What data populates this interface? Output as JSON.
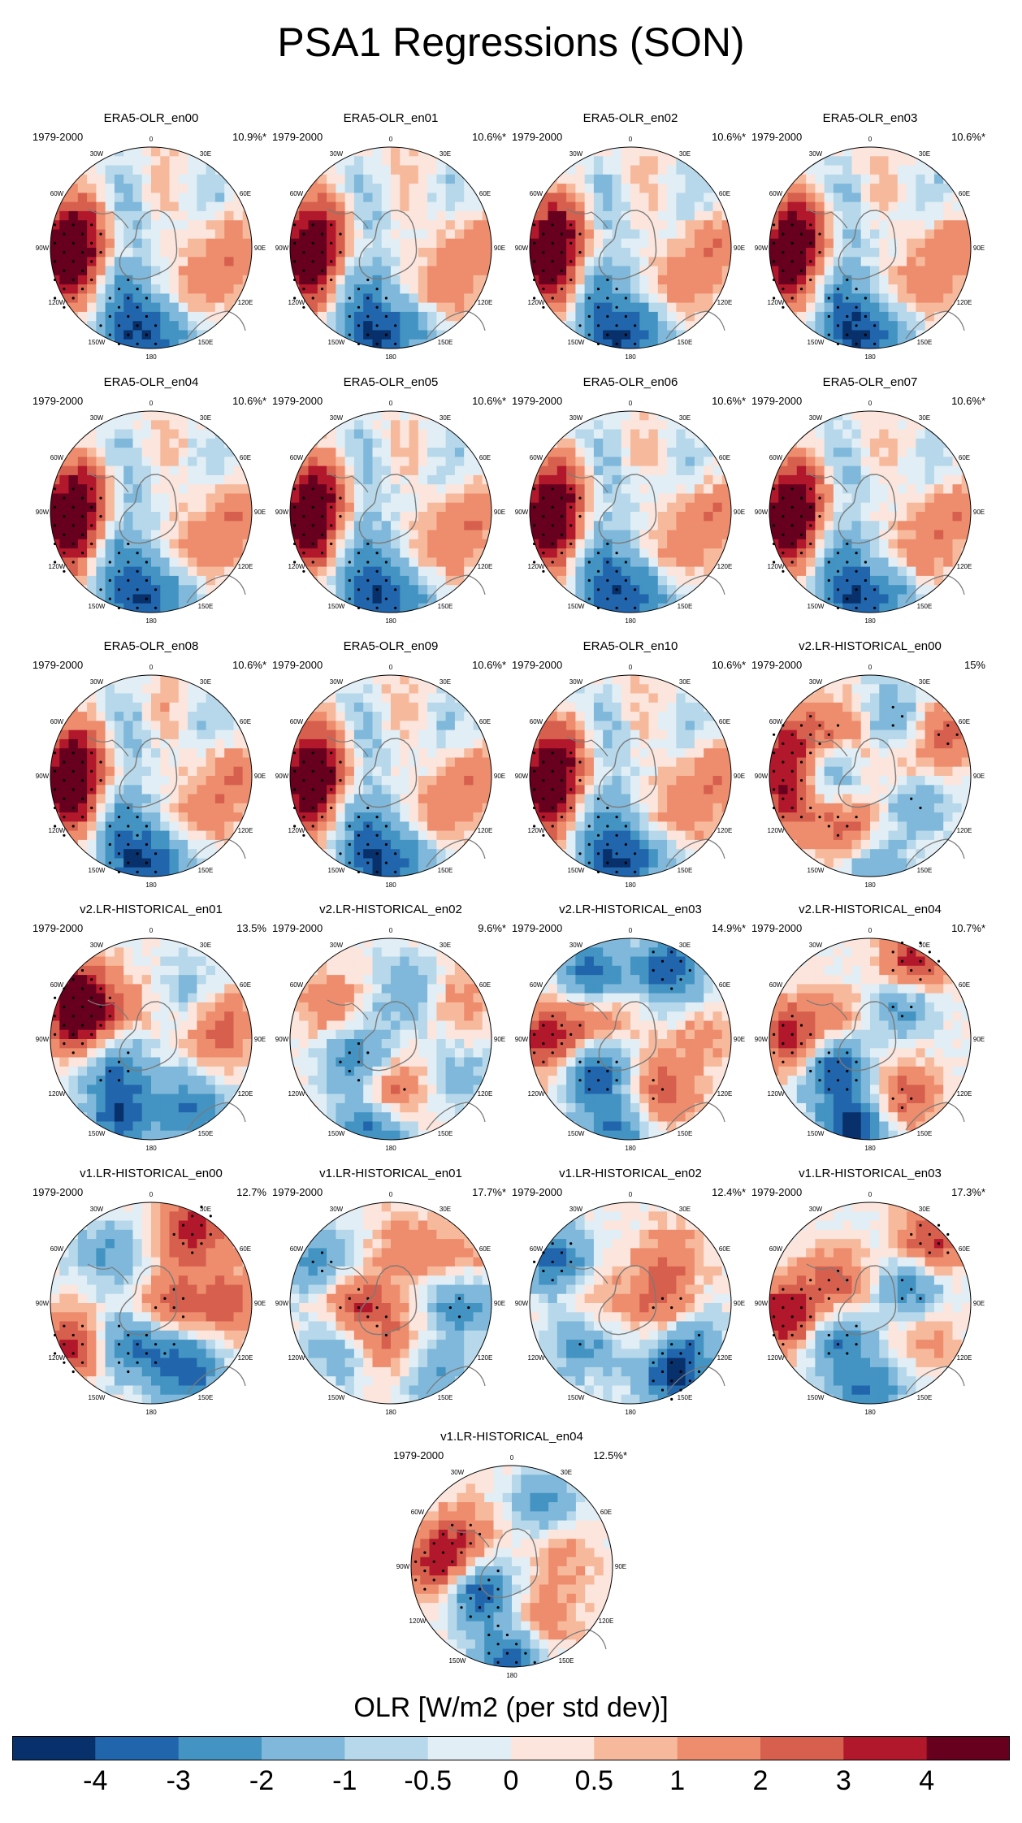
{
  "figure": {
    "title": "PSA1 Regressions (SON)",
    "period_label": "1979-2000",
    "colorbar_title": "OLR [W/m2 (per std dev)]"
  },
  "colors": {
    "levels": [
      "#08306b",
      "#2166ac",
      "#4393c3",
      "#7fb8da",
      "#b7d8ea",
      "#e2eef5",
      "#fbe5dc",
      "#f7b99c",
      "#ee8d6d",
      "#d6604d",
      "#b2182b",
      "#67001f"
    ],
    "coast": "#7a7a7a",
    "stipple": "#000000"
  },
  "colorbar": {
    "labels": [
      "-4",
      "-3",
      "-2",
      "-1",
      "-0.5",
      "0",
      "0.5",
      "1",
      "2",
      "3",
      "4"
    ]
  },
  "lon_labels": [
    "0",
    "30E",
    "60E",
    "90E",
    "120E",
    "150E",
    "180",
    "150W",
    "120W",
    "90W",
    "60W",
    "30W"
  ],
  "chart_data": {
    "type": "heatmap",
    "title": "PSA1 Regressions (SON)",
    "variable": "OLR [W/m2 (per std dev)]",
    "colorbar_levels": [
      -4,
      -3,
      -2,
      -1,
      -0.5,
      0,
      0.5,
      1,
      2,
      3,
      4
    ],
    "period": "1979-2000",
    "panels": [
      {
        "name": "ERA5-OLR_en00",
        "pct": "10.9%*",
        "pattern": 0
      },
      {
        "name": "ERA5-OLR_en01",
        "pct": "10.6%*",
        "pattern": 0
      },
      {
        "name": "ERA5-OLR_en02",
        "pct": "10.6%*",
        "pattern": 0
      },
      {
        "name": "ERA5-OLR_en03",
        "pct": "10.6%*",
        "pattern": 0
      },
      {
        "name": "ERA5-OLR_en04",
        "pct": "10.6%*",
        "pattern": 0
      },
      {
        "name": "ERA5-OLR_en05",
        "pct": "10.6%*",
        "pattern": 0
      },
      {
        "name": "ERA5-OLR_en06",
        "pct": "10.6%*",
        "pattern": 0
      },
      {
        "name": "ERA5-OLR_en07",
        "pct": "10.6%*",
        "pattern": 0
      },
      {
        "name": "ERA5-OLR_en08",
        "pct": "10.6%*",
        "pattern": 0
      },
      {
        "name": "ERA5-OLR_en09",
        "pct": "10.6%*",
        "pattern": 0
      },
      {
        "name": "ERA5-OLR_en10",
        "pct": "10.6%*",
        "pattern": 0
      },
      {
        "name": "v2.LR-HISTORICAL_en00",
        "pct": "15%",
        "pattern": 1
      },
      {
        "name": "v2.LR-HISTORICAL_en01",
        "pct": "13.5%",
        "pattern": 2
      },
      {
        "name": "v2.LR-HISTORICAL_en02",
        "pct": "9.6%*",
        "pattern": 3
      },
      {
        "name": "v2.LR-HISTORICAL_en03",
        "pct": "14.9%*",
        "pattern": 4
      },
      {
        "name": "v2.LR-HISTORICAL_en04",
        "pct": "10.7%*",
        "pattern": 5
      },
      {
        "name": "v1.LR-HISTORICAL_en00",
        "pct": "12.7%",
        "pattern": 6
      },
      {
        "name": "v1.LR-HISTORICAL_en01",
        "pct": "17.7%*",
        "pattern": 7
      },
      {
        "name": "v1.LR-HISTORICAL_en02",
        "pct": "12.4%*",
        "pattern": 8
      },
      {
        "name": "v1.LR-HISTORICAL_en03",
        "pct": "17.3%*",
        "pattern": 9
      },
      {
        "name": "v1.LR-HISTORICAL_en04",
        "pct": "12.5%*",
        "pattern": 10
      }
    ],
    "patterns": [
      [
        {
          "lon": 270,
          "r": 0.8,
          "v": 4.2,
          "s": 1
        },
        {
          "lon": 245,
          "r": 0.85,
          "v": 3.2,
          "s": 1
        },
        {
          "lon": 300,
          "r": 0.7,
          "v": 3.0,
          "s": 0
        },
        {
          "lon": 330,
          "r": 0.6,
          "v": -2.2,
          "s": 1
        },
        {
          "lon": 220,
          "r": 0.55,
          "v": -2.6,
          "s": 1
        },
        {
          "lon": 190,
          "r": 0.9,
          "v": -3.5,
          "s": 1
        },
        {
          "lon": 160,
          "r": 0.8,
          "v": -2.0,
          "s": 0
        },
        {
          "lon": 135,
          "r": 0.65,
          "v": 2.0,
          "s": 1
        },
        {
          "lon": 90,
          "r": 0.85,
          "v": 1.8,
          "s": 0
        },
        {
          "lon": 45,
          "r": 0.75,
          "v": -1.2,
          "s": 0
        },
        {
          "lon": 10,
          "r": 0.6,
          "v": 1.5,
          "s": 0
        },
        {
          "lon": 300,
          "r": 0.35,
          "v": -1.0,
          "s": 0
        }
      ],
      [
        {
          "lon": 290,
          "r": 0.8,
          "v": 4.2,
          "s": 1
        },
        {
          "lon": 255,
          "r": 0.85,
          "v": 3.5,
          "s": 1
        },
        {
          "lon": 280,
          "r": 0.45,
          "v": -3.3,
          "s": 1
        },
        {
          "lon": 330,
          "r": 0.5,
          "v": 2.2,
          "s": 1
        },
        {
          "lon": 20,
          "r": 0.6,
          "v": -2.5,
          "s": 1
        },
        {
          "lon": 60,
          "r": 0.85,
          "v": 2.5,
          "s": 1
        },
        {
          "lon": 120,
          "r": 0.5,
          "v": -2.5,
          "s": 1
        },
        {
          "lon": 200,
          "r": 0.6,
          "v": 2.8,
          "s": 1
        },
        {
          "lon": 180,
          "r": 0.9,
          "v": -2.5,
          "s": 0
        },
        {
          "lon": 90,
          "r": 0.3,
          "v": 1.5,
          "s": 0
        }
      ],
      [
        {
          "lon": 300,
          "r": 0.85,
          "v": 4.5,
          "s": 1
        },
        {
          "lon": 280,
          "r": 0.7,
          "v": 3.0,
          "s": 1
        },
        {
          "lon": 230,
          "r": 0.45,
          "v": -3.0,
          "s": 1
        },
        {
          "lon": 200,
          "r": 0.85,
          "v": -3.5,
          "s": 0
        },
        {
          "lon": 150,
          "r": 0.8,
          "v": -3.0,
          "s": 0
        },
        {
          "lon": 80,
          "r": 0.7,
          "v": 2.8,
          "s": 0
        },
        {
          "lon": 40,
          "r": 0.6,
          "v": -1.5,
          "s": 0
        },
        {
          "lon": 330,
          "r": 0.4,
          "v": 1.0,
          "s": 0
        }
      ],
      [
        {
          "lon": 180,
          "r": 0.55,
          "v": 3.0,
          "s": 1
        },
        {
          "lon": 190,
          "r": 0.9,
          "v": -3.8,
          "s": 0
        },
        {
          "lon": 240,
          "r": 0.4,
          "v": -3.0,
          "s": 1
        },
        {
          "lon": 300,
          "r": 0.7,
          "v": 1.8,
          "s": 0
        },
        {
          "lon": 20,
          "r": 0.5,
          "v": -2.0,
          "s": 0
        },
        {
          "lon": 60,
          "r": 0.8,
          "v": 1.5,
          "s": 0
        },
        {
          "lon": 120,
          "r": 0.8,
          "v": -1.5,
          "s": 0
        }
      ],
      [
        {
          "lon": 270,
          "r": 0.8,
          "v": 4.0,
          "s": 1
        },
        {
          "lon": 230,
          "r": 0.45,
          "v": -4.0,
          "s": 1
        },
        {
          "lon": 330,
          "r": 0.75,
          "v": -3.5,
          "s": 0
        },
        {
          "lon": 30,
          "r": 0.8,
          "v": -3.8,
          "s": 1
        },
        {
          "lon": 150,
          "r": 0.6,
          "v": 2.5,
          "s": 1
        },
        {
          "lon": 190,
          "r": 0.9,
          "v": -3.0,
          "s": 0
        },
        {
          "lon": 90,
          "r": 0.7,
          "v": 1.2,
          "s": 0
        },
        {
          "lon": 300,
          "r": 0.35,
          "v": 2.2,
          "s": 0
        }
      ],
      [
        {
          "lon": 270,
          "r": 0.8,
          "v": 3.5,
          "s": 1
        },
        {
          "lon": 230,
          "r": 0.45,
          "v": -4.0,
          "s": 1
        },
        {
          "lon": 190,
          "r": 0.9,
          "v": -4.2,
          "s": 0
        },
        {
          "lon": 30,
          "r": 0.85,
          "v": 4.0,
          "s": 1
        },
        {
          "lon": 40,
          "r": 0.5,
          "v": -3.0,
          "s": 1
        },
        {
          "lon": 150,
          "r": 0.65,
          "v": 2.5,
          "s": 1
        },
        {
          "lon": 300,
          "r": 0.4,
          "v": 1.5,
          "s": 0
        }
      ],
      [
        {
          "lon": 240,
          "r": 0.85,
          "v": 4.2,
          "s": 1
        },
        {
          "lon": 320,
          "r": 0.65,
          "v": -2.0,
          "s": 0
        },
        {
          "lon": 220,
          "r": 0.55,
          "v": -3.0,
          "s": 1
        },
        {
          "lon": 30,
          "r": 0.85,
          "v": 3.5,
          "s": 1
        },
        {
          "lon": 90,
          "r": 0.2,
          "v": 2.5,
          "s": 1
        },
        {
          "lon": 150,
          "r": 0.8,
          "v": -3.0,
          "s": 0
        },
        {
          "lon": 90,
          "r": 0.8,
          "v": 2.5,
          "s": 0
        },
        {
          "lon": 170,
          "r": 0.5,
          "v": -2.0,
          "s": 1
        }
      ],
      [
        {
          "lon": 300,
          "r": 0.8,
          "v": -2.5,
          "s": 1
        },
        {
          "lon": 230,
          "r": 0.7,
          "v": -2.0,
          "s": 0
        },
        {
          "lon": 270,
          "r": 0.35,
          "v": 3.0,
          "s": 1
        },
        {
          "lon": 180,
          "r": 0.4,
          "v": 2.0,
          "s": 1
        },
        {
          "lon": 90,
          "r": 0.7,
          "v": -2.8,
          "s": 1
        },
        {
          "lon": 20,
          "r": 0.55,
          "v": 1.5,
          "s": 0
        },
        {
          "lon": 150,
          "r": 0.85,
          "v": -2.0,
          "s": 0
        },
        {
          "lon": 60,
          "r": 0.85,
          "v": 1.5,
          "s": 0
        }
      ],
      [
        {
          "lon": 300,
          "r": 0.85,
          "v": -3.5,
          "s": 1
        },
        {
          "lon": 230,
          "r": 0.6,
          "v": -2.5,
          "s": 1
        },
        {
          "lon": 150,
          "r": 0.85,
          "v": -3.8,
          "s": 1
        },
        {
          "lon": 120,
          "r": 0.7,
          "v": -2.0,
          "s": 1
        },
        {
          "lon": 90,
          "r": 0.3,
          "v": 2.5,
          "s": 1
        },
        {
          "lon": 40,
          "r": 0.6,
          "v": 1.5,
          "s": 0
        },
        {
          "lon": 270,
          "r": 0.4,
          "v": 1.5,
          "s": 0
        }
      ],
      [
        {
          "lon": 260,
          "r": 0.85,
          "v": 4.2,
          "s": 1
        },
        {
          "lon": 220,
          "r": 0.5,
          "v": -3.0,
          "s": 1
        },
        {
          "lon": 45,
          "r": 0.85,
          "v": 3.5,
          "s": 1
        },
        {
          "lon": 70,
          "r": 0.45,
          "v": -3.0,
          "s": 1
        },
        {
          "lon": 180,
          "r": 0.9,
          "v": -3.0,
          "s": 0
        },
        {
          "lon": 300,
          "r": 0.4,
          "v": 2.5,
          "s": 1
        },
        {
          "lon": 120,
          "r": 0.6,
          "v": 1.5,
          "s": 0
        }
      ],
      [
        {
          "lon": 270,
          "r": 0.75,
          "v": 3.5,
          "s": 1
        },
        {
          "lon": 235,
          "r": 0.4,
          "v": -4.0,
          "s": 1
        },
        {
          "lon": 300,
          "r": 0.55,
          "v": 2.5,
          "s": 1
        },
        {
          "lon": 180,
          "r": 0.9,
          "v": -3.5,
          "s": 1
        },
        {
          "lon": 150,
          "r": 0.6,
          "v": 2.0,
          "s": 1
        },
        {
          "lon": 30,
          "r": 0.7,
          "v": -2.5,
          "s": 0
        },
        {
          "lon": 70,
          "r": 0.5,
          "v": 1.5,
          "s": 0
        }
      ]
    ]
  }
}
